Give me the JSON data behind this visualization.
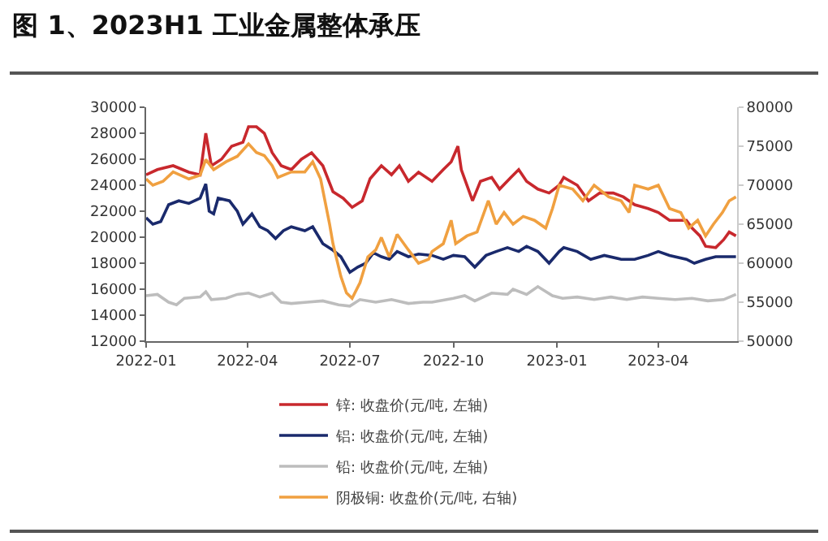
{
  "chart_data": {
    "type": "line",
    "title": "图 1、2023H1 工业金属整体承压",
    "xlim": [
      "2022-01-01",
      "2023-06-10"
    ],
    "xticks": [
      {
        "value": "2022-01-01",
        "label": "2022-01"
      },
      {
        "value": "2022-04-01",
        "label": "2022-04"
      },
      {
        "value": "2022-07-01",
        "label": "2022-07"
      },
      {
        "value": "2022-10-01",
        "label": "2022-10"
      },
      {
        "value": "2023-01-01",
        "label": "2023-01"
      },
      {
        "value": "2023-04-01",
        "label": "2023-04"
      }
    ],
    "ylim": [
      12000,
      30000
    ],
    "yticks": [
      12000,
      14000,
      16000,
      18000,
      20000,
      22000,
      24000,
      26000,
      28000,
      30000
    ],
    "y2lim": [
      50000,
      80000
    ],
    "y2ticks": [
      50000,
      55000,
      60000,
      65000,
      70000,
      75000,
      80000
    ],
    "grid": false,
    "legend": "bottom",
    "marker": "none",
    "line_style": "solid",
    "series": [
      {
        "name": "锌: 收盘价(元/吨, 左轴)",
        "color": "#c8282d",
        "x": [
          "2022-01-01",
          "2022-01-11",
          "2022-01-25",
          "2022-02-08",
          "2022-02-18",
          "2022-02-23",
          "2022-02-28",
          "2022-03-09",
          "2022-03-18",
          "2022-03-28",
          "2022-04-02",
          "2022-04-09",
          "2022-04-16",
          "2022-04-23",
          "2022-05-01",
          "2022-05-10",
          "2022-05-19",
          "2022-05-28",
          "2022-06-07",
          "2022-06-16",
          "2022-06-25",
          "2022-07-03",
          "2022-07-12",
          "2022-07-19",
          "2022-07-29",
          "2022-08-07",
          "2022-08-14",
          "2022-08-22",
          "2022-08-31",
          "2022-09-12",
          "2022-09-22",
          "2022-09-29",
          "2022-10-05",
          "2022-10-08",
          "2022-10-18",
          "2022-10-25",
          "2022-11-04",
          "2022-11-11",
          "2022-11-21",
          "2022-11-28",
          "2022-12-05",
          "2022-12-15",
          "2022-12-25",
          "2023-01-03",
          "2023-01-07",
          "2023-01-19",
          "2023-01-29",
          "2023-02-08",
          "2023-02-20",
          "2023-03-01",
          "2023-03-11",
          "2023-03-23",
          "2023-04-01",
          "2023-04-11",
          "2023-04-26",
          "2023-05-01",
          "2023-05-08",
          "2023-05-13",
          "2023-05-22",
          "2023-05-29",
          "2023-06-03",
          "2023-06-09"
        ],
        "values": [
          24800,
          25200,
          25500,
          25000,
          24800,
          28000,
          25500,
          26000,
          27000,
          27300,
          28500,
          28500,
          28000,
          26500,
          25500,
          25200,
          26000,
          26500,
          25500,
          23500,
          23000,
          22300,
          22800,
          24500,
          25500,
          24800,
          25500,
          24300,
          25000,
          24300,
          25200,
          25800,
          27000,
          25200,
          22800,
          24300,
          24600,
          23700,
          24600,
          25200,
          24300,
          23700,
          23400,
          24000,
          24600,
          24000,
          22800,
          23400,
          23400,
          23100,
          22500,
          22200,
          21900,
          21300,
          21300,
          20700,
          20100,
          19300,
          19200,
          19800,
          20400,
          20100
        ]
      },
      {
        "name": "铝: 收盘价(元/吨, 左轴)",
        "color": "#1a2a6c",
        "x": [
          "2022-01-01",
          "2022-01-07",
          "2022-01-14",
          "2022-01-21",
          "2022-01-30",
          "2022-02-08",
          "2022-02-18",
          "2022-02-23",
          "2022-02-26",
          "2022-03-02",
          "2022-03-06",
          "2022-03-16",
          "2022-03-23",
          "2022-03-28",
          "2022-04-05",
          "2022-04-12",
          "2022-04-19",
          "2022-04-26",
          "2022-05-03",
          "2022-05-10",
          "2022-05-22",
          "2022-05-29",
          "2022-06-07",
          "2022-06-16",
          "2022-06-23",
          "2022-07-01",
          "2022-07-08",
          "2022-07-15",
          "2022-07-22",
          "2022-07-29",
          "2022-08-05",
          "2022-08-12",
          "2022-08-22",
          "2022-08-31",
          "2022-09-12",
          "2022-09-22",
          "2022-10-01",
          "2022-10-11",
          "2022-10-20",
          "2022-10-30",
          "2022-11-08",
          "2022-11-18",
          "2022-11-28",
          "2022-12-05",
          "2022-12-15",
          "2022-12-25",
          "2023-01-03",
          "2023-01-07",
          "2023-01-19",
          "2023-01-31",
          "2023-02-12",
          "2023-02-27",
          "2023-03-11",
          "2023-03-23",
          "2023-04-01",
          "2023-04-11",
          "2023-04-26",
          "2023-05-03",
          "2023-05-13",
          "2023-05-22",
          "2023-06-01",
          "2023-06-09"
        ],
        "values": [
          21500,
          21000,
          21200,
          22500,
          22800,
          22600,
          23000,
          24100,
          22000,
          21800,
          23000,
          22800,
          22000,
          21000,
          21800,
          20800,
          20500,
          19900,
          20500,
          20800,
          20500,
          20800,
          19500,
          19000,
          18500,
          17300,
          17700,
          18000,
          18800,
          18500,
          18300,
          18900,
          18500,
          18700,
          18600,
          18300,
          18600,
          18500,
          17700,
          18600,
          18900,
          19200,
          18900,
          19300,
          18900,
          18000,
          18900,
          19200,
          18900,
          18300,
          18600,
          18300,
          18300,
          18600,
          18900,
          18600,
          18300,
          18000,
          18300,
          18500,
          18500,
          18500
        ]
      },
      {
        "name": "铅: 收盘价(元/吨, 左轴)",
        "color": "#bdbdbd",
        "x": [
          "2022-01-01",
          "2022-01-11",
          "2022-01-21",
          "2022-01-28",
          "2022-02-04",
          "2022-02-18",
          "2022-02-23",
          "2022-02-28",
          "2022-03-13",
          "2022-03-23",
          "2022-04-02",
          "2022-04-12",
          "2022-04-23",
          "2022-05-01",
          "2022-05-10",
          "2022-05-24",
          "2022-06-07",
          "2022-06-21",
          "2022-07-01",
          "2022-07-10",
          "2022-07-24",
          "2022-08-07",
          "2022-08-22",
          "2022-09-04",
          "2022-09-12",
          "2022-10-01",
          "2022-10-11",
          "2022-10-20",
          "2022-11-04",
          "2022-11-18",
          "2022-11-23",
          "2022-12-05",
          "2022-12-15",
          "2022-12-28",
          "2023-01-06",
          "2023-01-19",
          "2023-02-03",
          "2023-02-18",
          "2023-03-04",
          "2023-03-18",
          "2023-04-01",
          "2023-04-16",
          "2023-05-01",
          "2023-05-15",
          "2023-05-29",
          "2023-06-09"
        ],
        "values": [
          15500,
          15600,
          15000,
          14800,
          15300,
          15400,
          15800,
          15200,
          15300,
          15600,
          15700,
          15400,
          15700,
          15000,
          14900,
          15000,
          15100,
          14800,
          14700,
          15200,
          15000,
          15200,
          14900,
          15000,
          15000,
          15300,
          15500,
          15100,
          15700,
          15600,
          16000,
          15600,
          16200,
          15500,
          15300,
          15400,
          15200,
          15400,
          15200,
          15400,
          15300,
          15200,
          15300,
          15100,
          15200,
          15600
        ]
      },
      {
        "name": "阴极铜: 收盘价(元/吨, 右轴)",
        "color": "#f0a040",
        "axis": "y2",
        "x": [
          "2022-01-01",
          "2022-01-07",
          "2022-01-16",
          "2022-01-25",
          "2022-02-08",
          "2022-02-18",
          "2022-02-23",
          "2022-03-02",
          "2022-03-13",
          "2022-03-23",
          "2022-04-02",
          "2022-04-09",
          "2022-04-16",
          "2022-04-23",
          "2022-04-28",
          "2022-05-10",
          "2022-05-22",
          "2022-05-29",
          "2022-06-05",
          "2022-06-13",
          "2022-06-16",
          "2022-06-23",
          "2022-06-28",
          "2022-07-03",
          "2022-07-10",
          "2022-07-17",
          "2022-07-24",
          "2022-07-29",
          "2022-08-05",
          "2022-08-12",
          "2022-08-22",
          "2022-08-31",
          "2022-09-09",
          "2022-09-12",
          "2022-09-22",
          "2022-09-29",
          "2022-10-03",
          "2022-10-13",
          "2022-10-22",
          "2022-11-01",
          "2022-11-08",
          "2022-11-15",
          "2022-11-23",
          "2022-12-02",
          "2022-12-12",
          "2022-12-22",
          "2022-12-28",
          "2023-01-03",
          "2023-01-15",
          "2023-01-24",
          "2023-02-03",
          "2023-02-16",
          "2023-02-27",
          "2023-03-06",
          "2023-03-11",
          "2023-03-23",
          "2023-04-01",
          "2023-04-11",
          "2023-04-21",
          "2023-04-28",
          "2023-05-06",
          "2023-05-13",
          "2023-05-20",
          "2023-05-28",
          "2023-06-03",
          "2023-06-09"
        ],
        "values": [
          70800,
          70000,
          70500,
          71700,
          70800,
          71300,
          73300,
          72000,
          73000,
          73700,
          75300,
          74200,
          73800,
          72500,
          71000,
          71700,
          71700,
          73000,
          70800,
          65000,
          62500,
          58300,
          56200,
          55500,
          57500,
          60800,
          61700,
          63300,
          60800,
          63700,
          61700,
          60000,
          60500,
          61500,
          62500,
          65500,
          62500,
          63500,
          64000,
          68000,
          65000,
          66500,
          65000,
          66000,
          65500,
          64500,
          67000,
          70000,
          69500,
          68000,
          70000,
          68500,
          68000,
          66500,
          70000,
          69500,
          70000,
          67000,
          66500,
          64500,
          65500,
          63500,
          65000,
          66500,
          68000,
          68500
        ]
      }
    ]
  }
}
